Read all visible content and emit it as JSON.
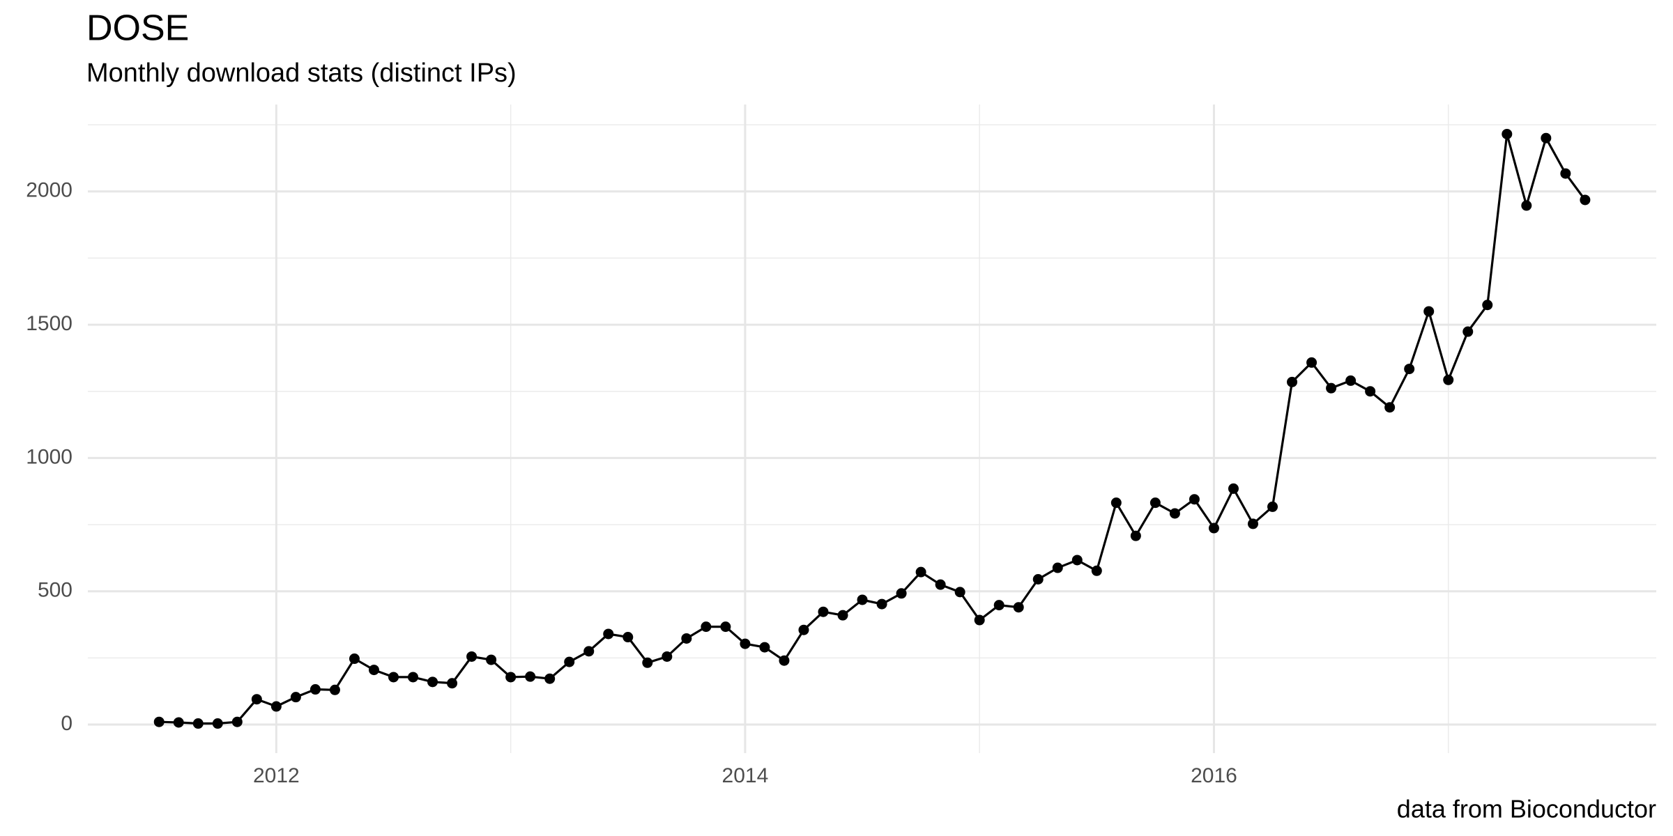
{
  "chart_data": {
    "type": "line",
    "title": "DOSE",
    "subtitle": "Monthly download stats (distinct IPs)",
    "caption": "data from Bioconductor",
    "x": [
      "2011-07",
      "2011-08",
      "2011-09",
      "2011-10",
      "2011-11",
      "2011-12",
      "2012-01",
      "2012-02",
      "2012-03",
      "2012-04",
      "2012-05",
      "2012-06",
      "2012-07",
      "2012-08",
      "2012-09",
      "2012-10",
      "2012-11",
      "2012-12",
      "2013-01",
      "2013-02",
      "2013-03",
      "2013-04",
      "2013-05",
      "2013-06",
      "2013-07",
      "2013-08",
      "2013-09",
      "2013-10",
      "2013-11",
      "2013-12",
      "2014-01",
      "2014-02",
      "2014-03",
      "2014-04",
      "2014-05",
      "2014-06",
      "2014-07",
      "2014-08",
      "2014-09",
      "2014-10",
      "2014-11",
      "2014-12",
      "2015-01",
      "2015-02",
      "2015-03",
      "2015-04",
      "2015-05",
      "2015-06",
      "2015-07",
      "2015-08",
      "2015-09",
      "2015-10",
      "2015-11",
      "2015-12",
      "2016-01",
      "2016-02",
      "2016-03",
      "2016-04",
      "2016-05",
      "2016-06",
      "2016-07",
      "2016-08",
      "2016-09",
      "2016-10",
      "2016-11",
      "2016-12",
      "2017-01",
      "2017-02",
      "2017-03",
      "2017-04",
      "2017-05",
      "2017-06",
      "2017-07",
      "2017-08"
    ],
    "values": [
      10,
      8,
      4,
      4,
      10,
      95,
      68,
      103,
      132,
      130,
      247,
      205,
      178,
      178,
      160,
      155,
      255,
      243,
      178,
      180,
      172,
      235,
      275,
      340,
      328,
      232,
      255,
      323,
      367,
      367,
      303,
      290,
      240,
      355,
      423,
      410,
      468,
      452,
      492,
      572,
      525,
      497,
      392,
      448,
      440,
      545,
      588,
      617,
      577,
      832,
      708,
      832,
      792,
      845,
      737,
      885,
      753,
      817,
      1285,
      1358,
      1262,
      1290,
      1250,
      1190,
      1334,
      1550,
      1293,
      1474,
      1574,
      2215,
      1947,
      2200,
      2067,
      1968
    ],
    "color": "#000000",
    "xlim": [
      2011.196,
      2017.887
    ],
    "xticks": [
      2012,
      2014,
      2016
    ],
    "ylim": [
      -107,
      2326
    ],
    "yticks": [
      0,
      500,
      1000,
      1500,
      2000
    ],
    "grid": true
  }
}
